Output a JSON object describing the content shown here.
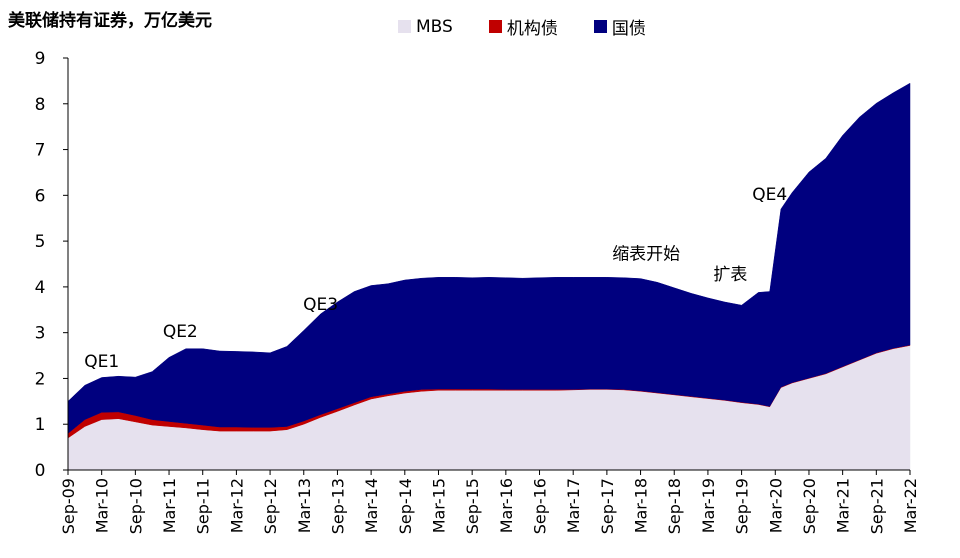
{
  "chart_data": {
    "type": "area",
    "stacked": true,
    "title": "美联储持有证券，万亿美元",
    "xlabel": "",
    "ylabel": "",
    "ylim": [
      0,
      9
    ],
    "yticks": [
      0,
      1,
      2,
      3,
      4,
      5,
      6,
      7,
      8,
      9
    ],
    "xrange": [
      "2009-09",
      "2022-03"
    ],
    "x_tick_labels": [
      "Sep-09",
      "Mar-10",
      "Sep-10",
      "Mar-11",
      "Sep-11",
      "Mar-12",
      "Sep-12",
      "Mar-13",
      "Sep-13",
      "Mar-14",
      "Sep-14",
      "Mar-15",
      "Sep-15",
      "Mar-16",
      "Sep-16",
      "Mar-17",
      "Sep-17",
      "Mar-18",
      "Sep-18",
      "Mar-19",
      "Sep-19",
      "Mar-20",
      "Sep-20",
      "Mar-21",
      "Sep-21",
      "Mar-22"
    ],
    "grid": false,
    "legend_position": "top",
    "dates": [
      "2009-09",
      "2009-12",
      "2010-03",
      "2010-06",
      "2010-09",
      "2010-12",
      "2011-03",
      "2011-06",
      "2011-09",
      "2011-12",
      "2012-03",
      "2012-06",
      "2012-09",
      "2012-12",
      "2013-03",
      "2013-06",
      "2013-09",
      "2013-12",
      "2014-03",
      "2014-06",
      "2014-09",
      "2014-12",
      "2015-03",
      "2015-06",
      "2015-09",
      "2015-12",
      "2016-03",
      "2016-06",
      "2016-09",
      "2016-12",
      "2017-03",
      "2017-06",
      "2017-09",
      "2017-12",
      "2018-03",
      "2018-06",
      "2018-09",
      "2018-12",
      "2019-03",
      "2019-06",
      "2019-09",
      "2019-12",
      "2020-02",
      "2020-04",
      "2020-06",
      "2020-09",
      "2020-12",
      "2021-03",
      "2021-06",
      "2021-09",
      "2021-12",
      "2022-03"
    ],
    "series": [
      {
        "name": "MBS",
        "color": "#e6e1ee",
        "values": [
          0.7,
          0.95,
          1.1,
          1.12,
          1.05,
          0.98,
          0.95,
          0.92,
          0.88,
          0.85,
          0.85,
          0.85,
          0.85,
          0.88,
          1.0,
          1.15,
          1.28,
          1.42,
          1.55,
          1.62,
          1.68,
          1.72,
          1.74,
          1.74,
          1.74,
          1.74,
          1.74,
          1.74,
          1.74,
          1.74,
          1.75,
          1.76,
          1.76,
          1.75,
          1.72,
          1.68,
          1.64,
          1.6,
          1.56,
          1.52,
          1.47,
          1.43,
          1.38,
          1.8,
          1.9,
          2.0,
          2.1,
          2.25,
          2.4,
          2.55,
          2.65,
          2.72
        ]
      },
      {
        "name": "机构债",
        "color": "#c00000",
        "values": [
          0.1,
          0.15,
          0.16,
          0.15,
          0.14,
          0.12,
          0.11,
          0.1,
          0.1,
          0.09,
          0.09,
          0.08,
          0.08,
          0.07,
          0.07,
          0.06,
          0.06,
          0.05,
          0.05,
          0.04,
          0.04,
          0.04,
          0.03,
          0.03,
          0.03,
          0.03,
          0.02,
          0.02,
          0.02,
          0.02,
          0.01,
          0.01,
          0.01,
          0.01,
          0.01,
          0.01,
          0.01,
          0.01,
          0.01,
          0.01,
          0.01,
          0.01,
          0.01,
          0.01,
          0.01,
          0.01,
          0.01,
          0.01,
          0.01,
          0.01,
          0.01,
          0.01
        ]
      },
      {
        "name": "国债",
        "color": "#00007f",
        "values": [
          0.7,
          0.75,
          0.76,
          0.78,
          0.84,
          1.05,
          1.4,
          1.63,
          1.67,
          1.66,
          1.65,
          1.65,
          1.63,
          1.75,
          1.98,
          2.2,
          2.33,
          2.43,
          2.43,
          2.41,
          2.43,
          2.43,
          2.44,
          2.44,
          2.43,
          2.44,
          2.44,
          2.43,
          2.44,
          2.45,
          2.45,
          2.44,
          2.44,
          2.44,
          2.45,
          2.41,
          2.33,
          2.25,
          2.19,
          2.14,
          2.12,
          2.44,
          2.51,
          3.89,
          4.15,
          4.5,
          4.7,
          5.05,
          5.3,
          5.45,
          5.58,
          5.72
        ]
      }
    ],
    "annotations": [
      {
        "text": "QE1",
        "x": "2010-03",
        "y": 2.25
      },
      {
        "text": "QE2",
        "x": "2011-05",
        "y": 2.9
      },
      {
        "text": "QE3",
        "x": "2013-06",
        "y": 3.5
      },
      {
        "text": "缩表开始",
        "x": "2018-04",
        "y": 4.6
      },
      {
        "text": "扩表",
        "x": "2019-07",
        "y": 4.15
      },
      {
        "text": "QE4",
        "x": "2020-02",
        "y": 5.9
      }
    ]
  }
}
